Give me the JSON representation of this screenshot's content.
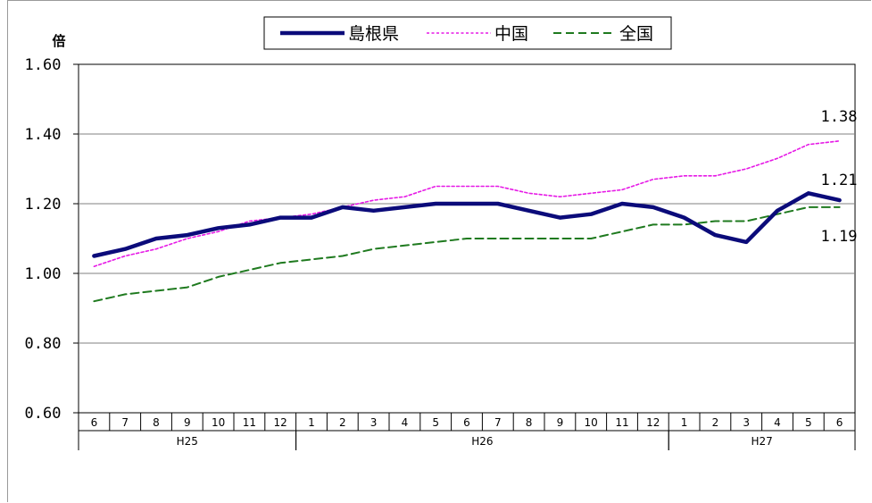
{
  "chart_data": {
    "type": "line",
    "title": "",
    "ylabel": "倍",
    "xlabel": "",
    "ylim": [
      0.6,
      1.6
    ],
    "y_ticks": [
      "1.60",
      "1.40",
      "1.20",
      "1.00",
      "0.80",
      "0.60"
    ],
    "categories": [
      "6",
      "7",
      "8",
      "9",
      "10",
      "11",
      "12",
      "1",
      "2",
      "3",
      "4",
      "5",
      "6",
      "7",
      "8",
      "9",
      "10",
      "11",
      "12",
      "1",
      "2",
      "3",
      "4",
      "5",
      "6"
    ],
    "year_groups": [
      {
        "label": "H25",
        "start": 0,
        "end": 6
      },
      {
        "label": "H26",
        "start": 7,
        "end": 18
      },
      {
        "label": "H27",
        "start": 19,
        "end": 24
      }
    ],
    "legend_position": "top",
    "grid": true,
    "series": [
      {
        "name": "島根県",
        "color": "#0b0b7a",
        "style": "solid",
        "values": [
          1.05,
          1.07,
          1.1,
          1.11,
          1.13,
          1.14,
          1.16,
          1.16,
          1.19,
          1.18,
          1.19,
          1.2,
          1.2,
          1.2,
          1.18,
          1.16,
          1.17,
          1.2,
          1.19,
          1.16,
          1.11,
          1.09,
          1.18,
          1.23,
          1.21
        ]
      },
      {
        "name": "中国",
        "color": "#e619e6",
        "style": "dotted",
        "values": [
          1.02,
          1.05,
          1.07,
          1.1,
          1.12,
          1.15,
          1.16,
          1.17,
          1.19,
          1.21,
          1.22,
          1.25,
          1.25,
          1.25,
          1.23,
          1.22,
          1.23,
          1.24,
          1.27,
          1.28,
          1.28,
          1.3,
          1.33,
          1.37,
          1.38
        ]
      },
      {
        "name": "全国",
        "color": "#1f7a1f",
        "style": "dashed",
        "values": [
          0.92,
          0.94,
          0.95,
          0.96,
          0.99,
          1.01,
          1.03,
          1.04,
          1.05,
          1.07,
          1.08,
          1.09,
          1.1,
          1.1,
          1.1,
          1.1,
          1.1,
          1.12,
          1.14,
          1.14,
          1.15,
          1.15,
          1.17,
          1.19,
          1.19
        ]
      }
    ],
    "annotations": [
      "1.38",
      "1.21",
      "1.19"
    ]
  }
}
